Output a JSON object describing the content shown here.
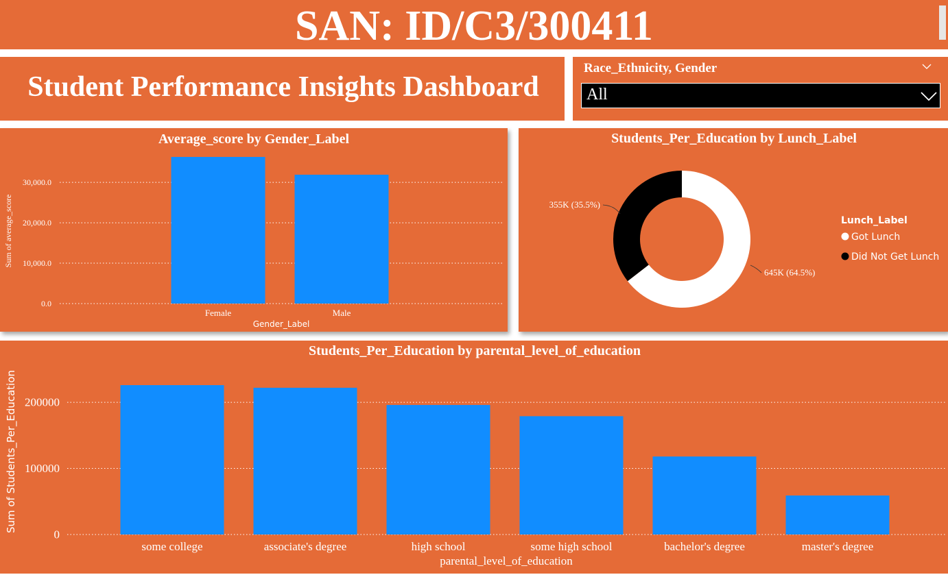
{
  "banner": {
    "title": "SAN: ID/C3/300411"
  },
  "dashboard": {
    "title": "Student Performance Insights Dashboard"
  },
  "slicer": {
    "label": "Race_Ethnicity, Gender",
    "value": "All"
  },
  "colors": {
    "panel": "#e56b37",
    "bar": "#118dff",
    "got_lunch": "#ffffff",
    "no_lunch": "#000000"
  },
  "chart_data": [
    {
      "type": "bar",
      "title": "Average_score by Gender_Label",
      "xlabel": "Gender_Label",
      "ylabel": "Sum of average_score",
      "categories": [
        "Female",
        "Male"
      ],
      "values": [
        36300,
        31900
      ],
      "ylim": [
        0,
        36300
      ],
      "yticks": [
        0,
        10000,
        20000,
        30000
      ],
      "ytick_labels": [
        "0.0",
        "10,000.0",
        "20,000.0",
        "30,000.0"
      ],
      "grid": true
    },
    {
      "type": "pie",
      "title": "Students_Per_Education by Lunch_Label",
      "legend_title": "Lunch_Label",
      "legend_position": "right",
      "labels": [
        "Got Lunch",
        "Did Not Get Lunch"
      ],
      "values": [
        645000,
        355000
      ],
      "data_labels": [
        "645K (64.5%)",
        "355K (35.5%)"
      ]
    },
    {
      "type": "bar",
      "title": "Students_Per_Education by parental_level_of_education",
      "xlabel": "parental_level_of_education",
      "ylabel": "Sum of Students_Per_Education",
      "categories": [
        "some college",
        "associate's degree",
        "high school",
        "some high school",
        "bachelor's degree",
        "master's degree"
      ],
      "values": [
        226000,
        222000,
        196000,
        179000,
        118000,
        59000
      ],
      "ylim": [
        0,
        226000
      ],
      "yticks": [
        0,
        100000,
        200000
      ],
      "ytick_labels": [
        "0",
        "100000",
        "200000"
      ],
      "grid": true
    }
  ]
}
